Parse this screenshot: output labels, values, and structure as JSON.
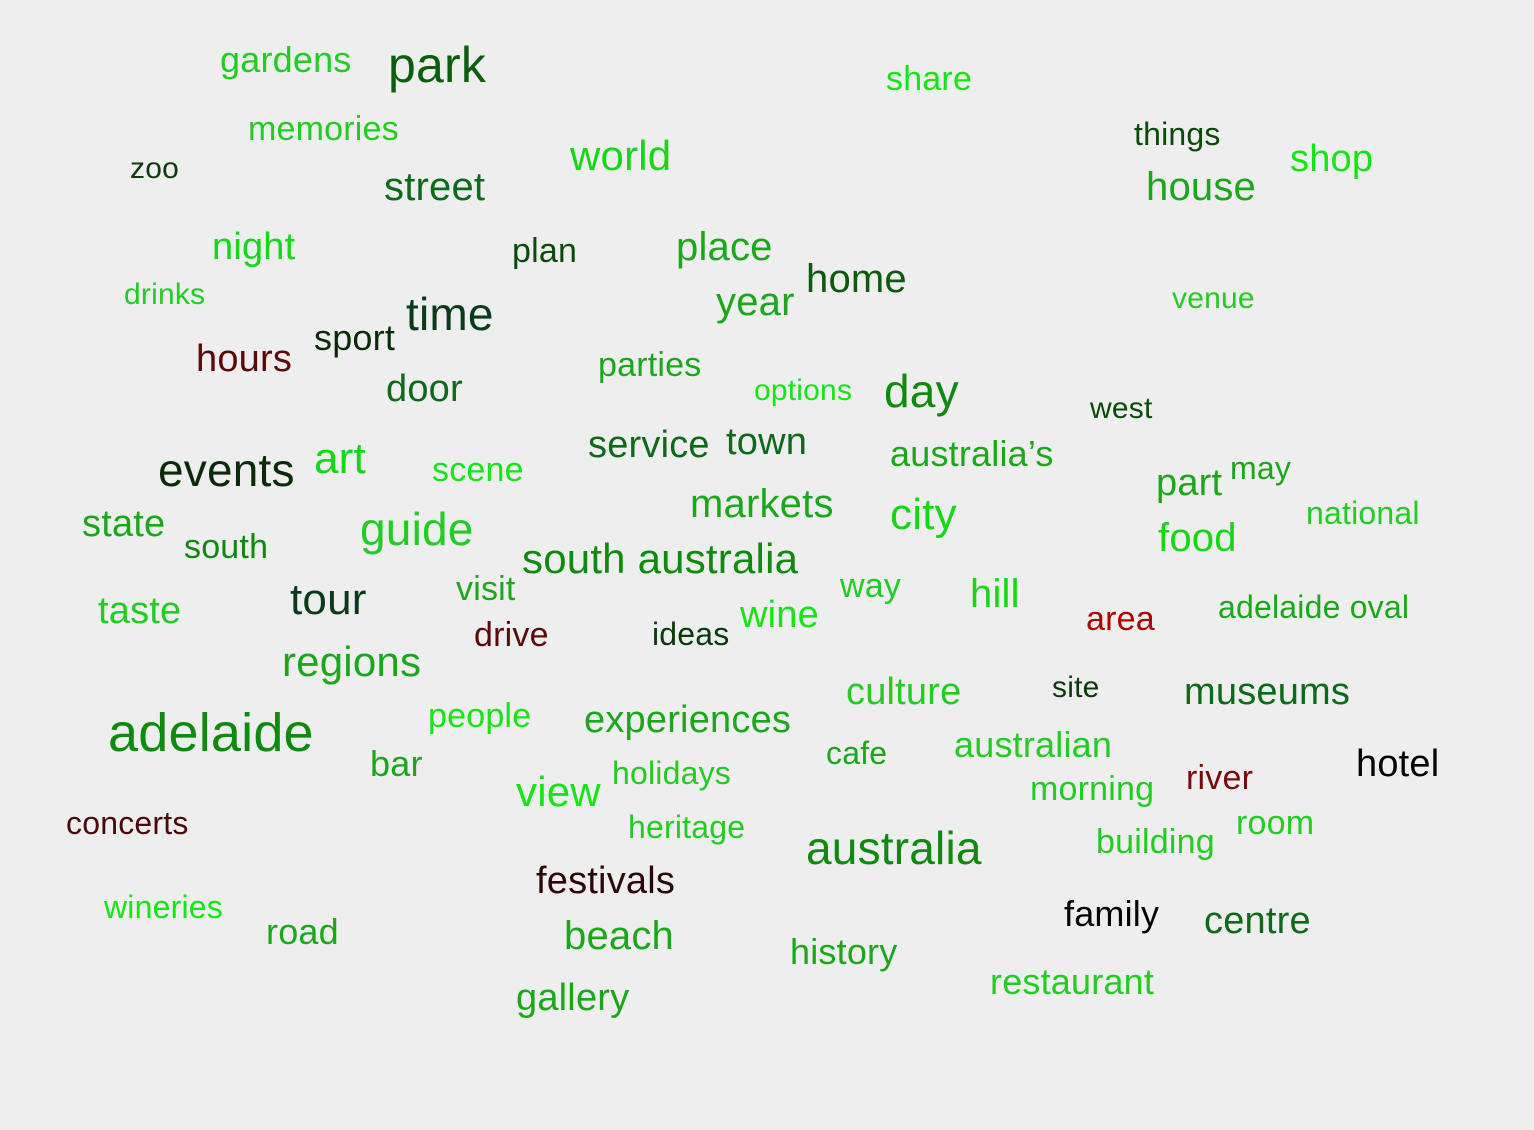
{
  "words": [
    {
      "text": "gardens",
      "color": "#22cc22",
      "weight": 0.45
    },
    {
      "text": "park",
      "color": "#0b5e0b",
      "weight": 1.0
    },
    {
      "text": "share",
      "color": "#14e614",
      "weight": 0.4
    },
    {
      "text": "memories",
      "color": "#22cc22",
      "weight": 0.38
    },
    {
      "text": "things",
      "color": "#0b4a0b",
      "weight": 0.35
    },
    {
      "text": "zoo",
      "color": "#0f3a0f",
      "weight": 0.3
    },
    {
      "text": "world",
      "color": "#14d814",
      "weight": 0.5
    },
    {
      "text": "shop",
      "color": "#14e614",
      "weight": 0.5
    },
    {
      "text": "street",
      "color": "#0d6a1a",
      "weight": 0.5
    },
    {
      "text": "house",
      "color": "#1aa81a",
      "weight": 0.55
    },
    {
      "text": "night",
      "color": "#14d814",
      "weight": 0.48
    },
    {
      "text": "plan",
      "color": "#0a4a0a",
      "weight": 0.42
    },
    {
      "text": "place",
      "color": "#1aa81a",
      "weight": 0.55
    },
    {
      "text": "home",
      "color": "#0c5a0c",
      "weight": 0.5
    },
    {
      "text": "drinks",
      "color": "#22cc22",
      "weight": 0.33
    },
    {
      "text": "venue",
      "color": "#22cc22",
      "weight": 0.33
    },
    {
      "text": "year",
      "color": "#1aa81a",
      "weight": 0.52
    },
    {
      "text": "time",
      "color": "#0a3a1a",
      "weight": 0.62
    },
    {
      "text": "sport",
      "color": "#0a2a0a",
      "weight": 0.42
    },
    {
      "text": "hours",
      "color": "#5a0a0a",
      "weight": 0.5
    },
    {
      "text": "parties",
      "color": "#1aa81a",
      "weight": 0.4
    },
    {
      "text": "door",
      "color": "#0d6a1a",
      "weight": 0.48
    },
    {
      "text": "options",
      "color": "#14e614",
      "weight": 0.35
    },
    {
      "text": "day",
      "color": "#0e8a0e",
      "weight": 0.62
    },
    {
      "text": "west",
      "color": "#0a4a0a",
      "weight": 0.35
    },
    {
      "text": "service",
      "color": "#0d6a1a",
      "weight": 0.48
    },
    {
      "text": "town",
      "color": "#0d6a1a",
      "weight": 0.48
    },
    {
      "text": "australia’s",
      "color": "#1aa81a",
      "weight": 0.45
    },
    {
      "text": "events",
      "color": "#0a2a0a",
      "weight": 0.62
    },
    {
      "text": "art",
      "color": "#14d814",
      "weight": 0.55
    },
    {
      "text": "scene",
      "color": "#14e614",
      "weight": 0.42
    },
    {
      "text": "part",
      "color": "#1aa81a",
      "weight": 0.48
    },
    {
      "text": "may",
      "color": "#1aa81a",
      "weight": 0.38
    },
    {
      "text": "markets",
      "color": "#1aa81a",
      "weight": 0.55
    },
    {
      "text": "city",
      "color": "#14d814",
      "weight": 0.55
    },
    {
      "text": "national",
      "color": "#22cc22",
      "weight": 0.4
    },
    {
      "text": "state",
      "color": "#1aa81a",
      "weight": 0.48
    },
    {
      "text": "south",
      "color": "#0e8a0e",
      "weight": 0.62
    },
    {
      "text": "guide",
      "color": "#22cc22",
      "weight": 0.4
    },
    {
      "text": "food",
      "color": "#14d814",
      "weight": 0.52
    },
    {
      "text": "south australia",
      "color": "#0e8a0e",
      "weight": 0.6
    },
    {
      "text": "tour",
      "color": "#0a3a1a",
      "weight": 0.58
    },
    {
      "text": "visit",
      "color": "#1aa81a",
      "weight": 0.42
    },
    {
      "text": "way",
      "color": "#22cc22",
      "weight": 0.42
    },
    {
      "text": "hill",
      "color": "#14d814",
      "weight": 0.52
    },
    {
      "text": "taste",
      "color": "#22cc22",
      "weight": 0.48
    },
    {
      "text": "wine",
      "color": "#14e614",
      "weight": 0.52
    },
    {
      "text": "area",
      "color": "#b00000",
      "weight": 0.45
    },
    {
      "text": "adelaide oval",
      "color": "#1aa81a",
      "weight": 0.4
    },
    {
      "text": "drive",
      "color": "#5a0a0a",
      "weight": 0.42
    },
    {
      "text": "ideas",
      "color": "#0a3a0a",
      "weight": 0.38
    },
    {
      "text": "regions",
      "color": "#1aa81a",
      "weight": 0.55
    },
    {
      "text": "culture",
      "color": "#22cc22",
      "weight": 0.48
    },
    {
      "text": "site",
      "color": "#0a3a0a",
      "weight": 0.35
    },
    {
      "text": "museums",
      "color": "#0d6a1a",
      "weight": 0.48
    },
    {
      "text": "adelaide",
      "color": "#0e8a0e",
      "weight": 0.8
    },
    {
      "text": "people",
      "color": "#14e614",
      "weight": 0.4
    },
    {
      "text": "experiences",
      "color": "#1aa81a",
      "weight": 0.5
    },
    {
      "text": "cafe",
      "color": "#1aa81a",
      "weight": 0.38
    },
    {
      "text": "australian",
      "color": "#22cc22",
      "weight": 0.42
    },
    {
      "text": "hotel",
      "color": "#050505",
      "weight": 0.5
    },
    {
      "text": "bar",
      "color": "#1aa81a",
      "weight": 0.45
    },
    {
      "text": "view",
      "color": "#14e614",
      "weight": 0.55
    },
    {
      "text": "holidays",
      "color": "#22cc22",
      "weight": 0.38
    },
    {
      "text": "morning",
      "color": "#22cc22",
      "weight": 0.4
    },
    {
      "text": "river",
      "color": "#7a0a0a",
      "weight": 0.42
    },
    {
      "text": "concerts",
      "color": "#4a0a0a",
      "weight": 0.4
    },
    {
      "text": "heritage",
      "color": "#22cc22",
      "weight": 0.4
    },
    {
      "text": "australia",
      "color": "#0e8a0e",
      "weight": 0.72
    },
    {
      "text": "building",
      "color": "#22cc22",
      "weight": 0.42
    },
    {
      "text": "room",
      "color": "#22cc22",
      "weight": 0.42
    },
    {
      "text": "festivals",
      "color": "#2a0808",
      "weight": 0.52
    },
    {
      "text": "wineries",
      "color": "#14e614",
      "weight": 0.38
    },
    {
      "text": "road",
      "color": "#1aa81a",
      "weight": 0.45
    },
    {
      "text": "family",
      "color": "#050505",
      "weight": 0.45
    },
    {
      "text": "centre",
      "color": "#0d6a1a",
      "weight": 0.5
    },
    {
      "text": "beach",
      "color": "#1aa81a",
      "weight": 0.52
    },
    {
      "text": "history",
      "color": "#1aa81a",
      "weight": 0.48
    },
    {
      "text": "restaurant",
      "color": "#22cc22",
      "weight": 0.45
    },
    {
      "text": "gallery",
      "color": "#1aa81a",
      "weight": 0.5
    }
  ]
}
